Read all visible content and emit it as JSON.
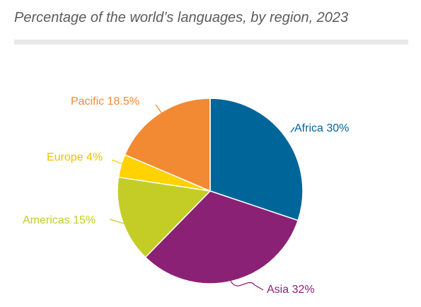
{
  "title": "Percentage of the world’s languages, by region, 2023",
  "chart_data": {
    "type": "pie",
    "title": "Percentage of the world’s languages, by region, 2023",
    "unit": "%",
    "start": "12 o'clock",
    "direction": "clockwise",
    "slices": [
      {
        "label": "Africa",
        "value": 30,
        "display": "Africa 30%",
        "color": "#006699"
      },
      {
        "label": "Asia",
        "value": 32,
        "display": "Asia 32%",
        "color": "#8b2175"
      },
      {
        "label": "Americas",
        "value": 15,
        "display": "Americas 15%",
        "color": "#c3cd26"
      },
      {
        "label": "Europe",
        "value": 4,
        "display": "Europe 4%",
        "color": "#ffd200"
      },
      {
        "label": "Pacific",
        "value": 18.5,
        "display": "Pacific 18.5%",
        "color": "#f18a33"
      }
    ]
  }
}
